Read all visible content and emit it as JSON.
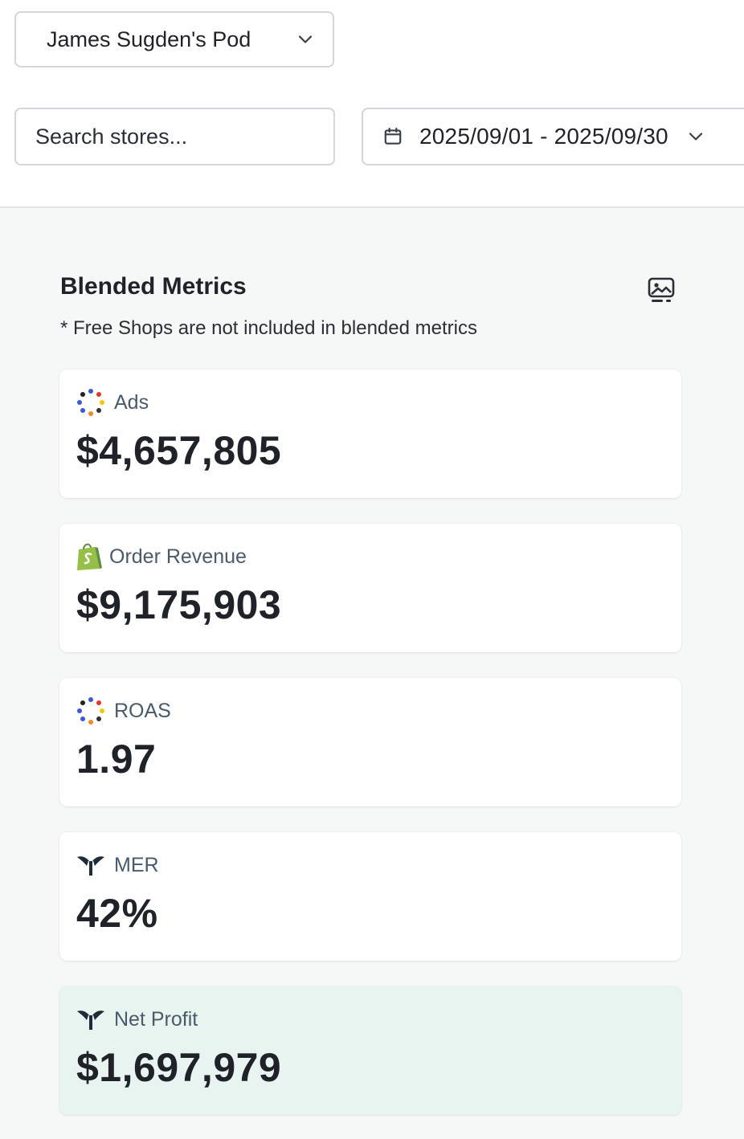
{
  "pod_selector": {
    "label": "James Sugden's Pod",
    "icon": "chevron-down-icon"
  },
  "search": {
    "placeholder": "Search stores..."
  },
  "date_range": {
    "label": "2025/09/01 - 2025/09/30",
    "icon": "calendar-icon"
  },
  "blended_metrics": {
    "title": "Blended Metrics",
    "note": "* Free Shops are not included in blended metrics",
    "action_icon": "image-icon",
    "cards": [
      {
        "label": "Ads",
        "value": "$4,657,805",
        "icon": "ads-dots-icon"
      },
      {
        "label": "Order Revenue",
        "value": "$9,175,903",
        "icon": "shopify-bag-icon"
      },
      {
        "label": "ROAS",
        "value": "1.97",
        "icon": "ads-dots-icon"
      },
      {
        "label": "MER",
        "value": "42%",
        "icon": "triple-whale-icon"
      },
      {
        "label": "Net Profit",
        "value": "$1,697,979",
        "icon": "triple-whale-icon"
      }
    ]
  },
  "colors": {
    "page_bg": "#f6f7f7",
    "card_bg": "#ffffff",
    "highlight_bg": "#e8f4ef",
    "label_text": "#4a5a6a",
    "value_text": "#1f2228",
    "shopify_green": "#95bf47"
  }
}
